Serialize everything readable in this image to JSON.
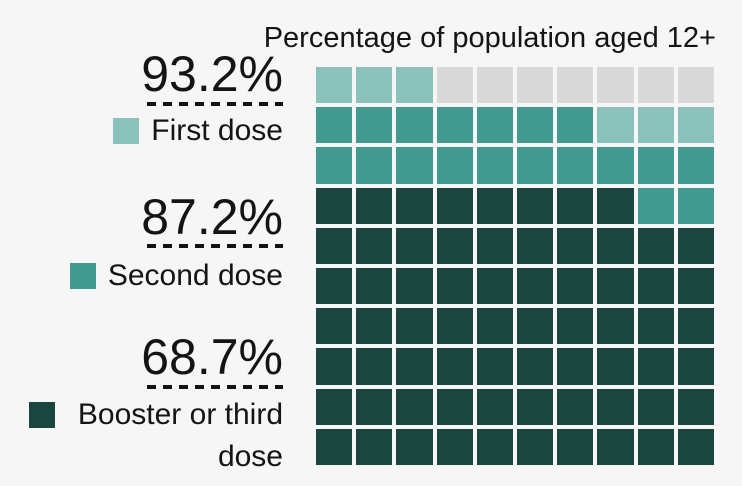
{
  "chart_data": {
    "type": "waffle",
    "title": "Percentage of population aged 12+",
    "grid": {
      "rows": 10,
      "cols": 10,
      "cells_total": 100,
      "fill_origin": "bottom-left",
      "fill_direction": "left-to-right within each row, rows filled bottom-to-top"
    },
    "series": [
      {
        "name": "First dose",
        "value": 93.2,
        "value_label": "93.2%",
        "filled_cells": 93,
        "color": "#8AC2BB"
      },
      {
        "name": "Second dose",
        "value": 87.2,
        "value_label": "87.2%",
        "filled_cells": 87,
        "color": "#439A90"
      },
      {
        "name": "Booster or third dose",
        "value": 68.7,
        "value_label": "68.7%",
        "filled_cells": 68,
        "color": "#1B453F"
      }
    ],
    "unfilled": {
      "cells": 7,
      "color": "#D9D9D9"
    },
    "cell_breakdown": {
      "booster_or_third_dose_cells": 68,
      "second_dose_only_cells": 19,
      "first_dose_only_cells": 6,
      "unvaccinated_cells": 7
    },
    "legend_position": "left",
    "background_color": "#F6F6F6",
    "value_rule_style": "dashed"
  }
}
